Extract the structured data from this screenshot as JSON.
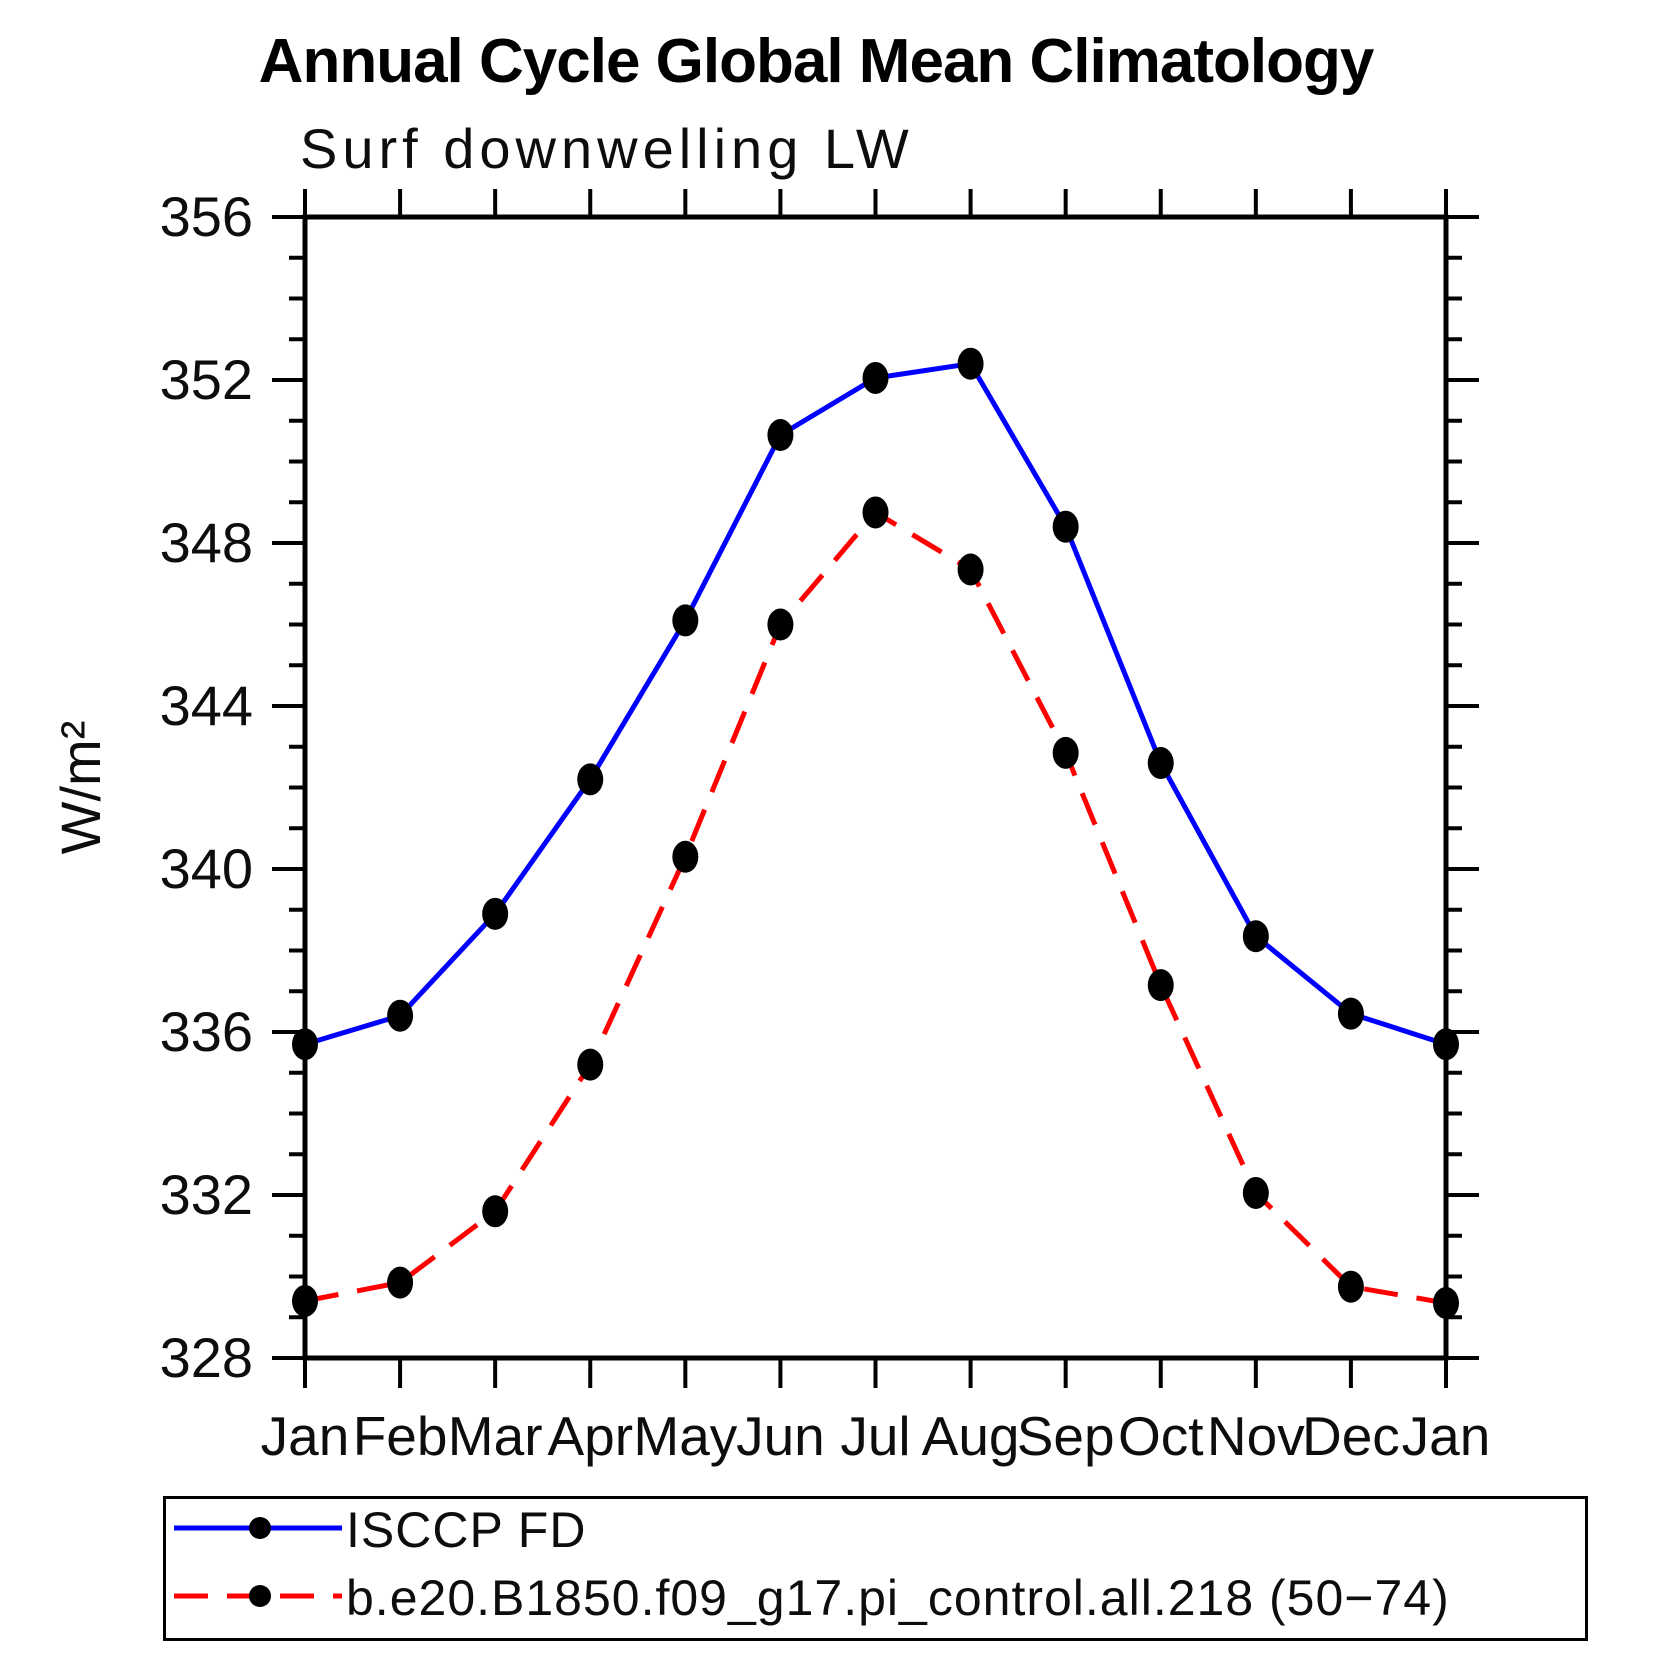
{
  "title": "Annual Cycle Global Mean Climatology",
  "subtitle": "Surf downwelling LW",
  "chart_data": {
    "type": "line",
    "title": "Annual Cycle Global Mean Climatology",
    "subtitle": "Surf downwelling LW",
    "xlabel": "",
    "ylabel": "W/m²",
    "ylim": [
      328,
      356
    ],
    "ytick_major": [
      328,
      332,
      336,
      340,
      344,
      348,
      352,
      356
    ],
    "ytick_minor_step": 1,
    "grid": false,
    "legend_position": "bottom-left-box",
    "categories": [
      "Jan",
      "Feb",
      "Mar",
      "Apr",
      "May",
      "Jun",
      "Jul",
      "Aug",
      "Sep",
      "Oct",
      "Nov",
      "Dec",
      "Jan"
    ],
    "series": [
      {
        "name": "ISCCP FD",
        "color": "#0000ff",
        "style": "solid",
        "marker": "filled-circle",
        "marker_color": "#000000",
        "values": [
          335.7,
          336.4,
          338.9,
          342.2,
          346.1,
          350.65,
          352.05,
          352.4,
          348.4,
          342.6,
          338.35,
          336.45,
          335.7
        ]
      },
      {
        "name": "b.e20.B1850.f09_g17.pi_control.all.218 (50−74)",
        "color": "#ff0000",
        "style": "dashed",
        "marker": "filled-circle",
        "marker_color": "#000000",
        "values": [
          329.4,
          329.85,
          331.6,
          335.2,
          340.3,
          346.0,
          348.75,
          347.35,
          342.85,
          337.15,
          332.05,
          329.75,
          329.35
        ]
      }
    ]
  }
}
